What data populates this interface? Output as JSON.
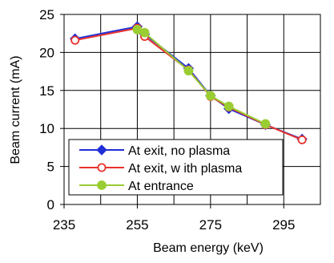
{
  "chart_data": {
    "type": "line",
    "title": "",
    "xlabel": "Beam energy (keV)",
    "ylabel": "Beam current (mA)",
    "xlim": [
      235,
      305
    ],
    "ylim": [
      0,
      25
    ],
    "xticks": [
      235,
      255,
      275,
      295
    ],
    "yticks": [
      0,
      5,
      10,
      15,
      20,
      25
    ],
    "grid": true,
    "legend_position": "lower-left",
    "series": [
      {
        "name": "At exit, no plasma",
        "color": "#1f2fd6",
        "marker": "diamond",
        "points": [
          [
            238,
            21.8
          ],
          [
            255,
            23.4
          ],
          [
            257,
            22.4
          ],
          [
            269,
            17.9
          ],
          [
            275,
            14.3
          ],
          [
            280,
            12.6
          ],
          [
            290,
            10.5
          ],
          [
            300,
            8.6
          ]
        ]
      },
      {
        "name": "At exit, w ith plasma",
        "color": "#e8322c",
        "marker": "open-circle",
        "points": [
          [
            238,
            21.6
          ],
          [
            255,
            23.2
          ],
          [
            257,
            22.1
          ],
          [
            269,
            17.7
          ],
          [
            275,
            14.2
          ],
          [
            280,
            12.8
          ],
          [
            290,
            10.5
          ],
          [
            300,
            8.5
          ]
        ]
      },
      {
        "name": "At entrance",
        "color": "#9acd32",
        "marker": "circle",
        "points": [
          [
            255,
            23.0
          ],
          [
            257,
            22.6
          ],
          [
            269,
            17.6
          ],
          [
            275,
            14.3
          ],
          [
            280,
            12.9
          ],
          [
            290,
            10.6
          ]
        ]
      }
    ]
  }
}
